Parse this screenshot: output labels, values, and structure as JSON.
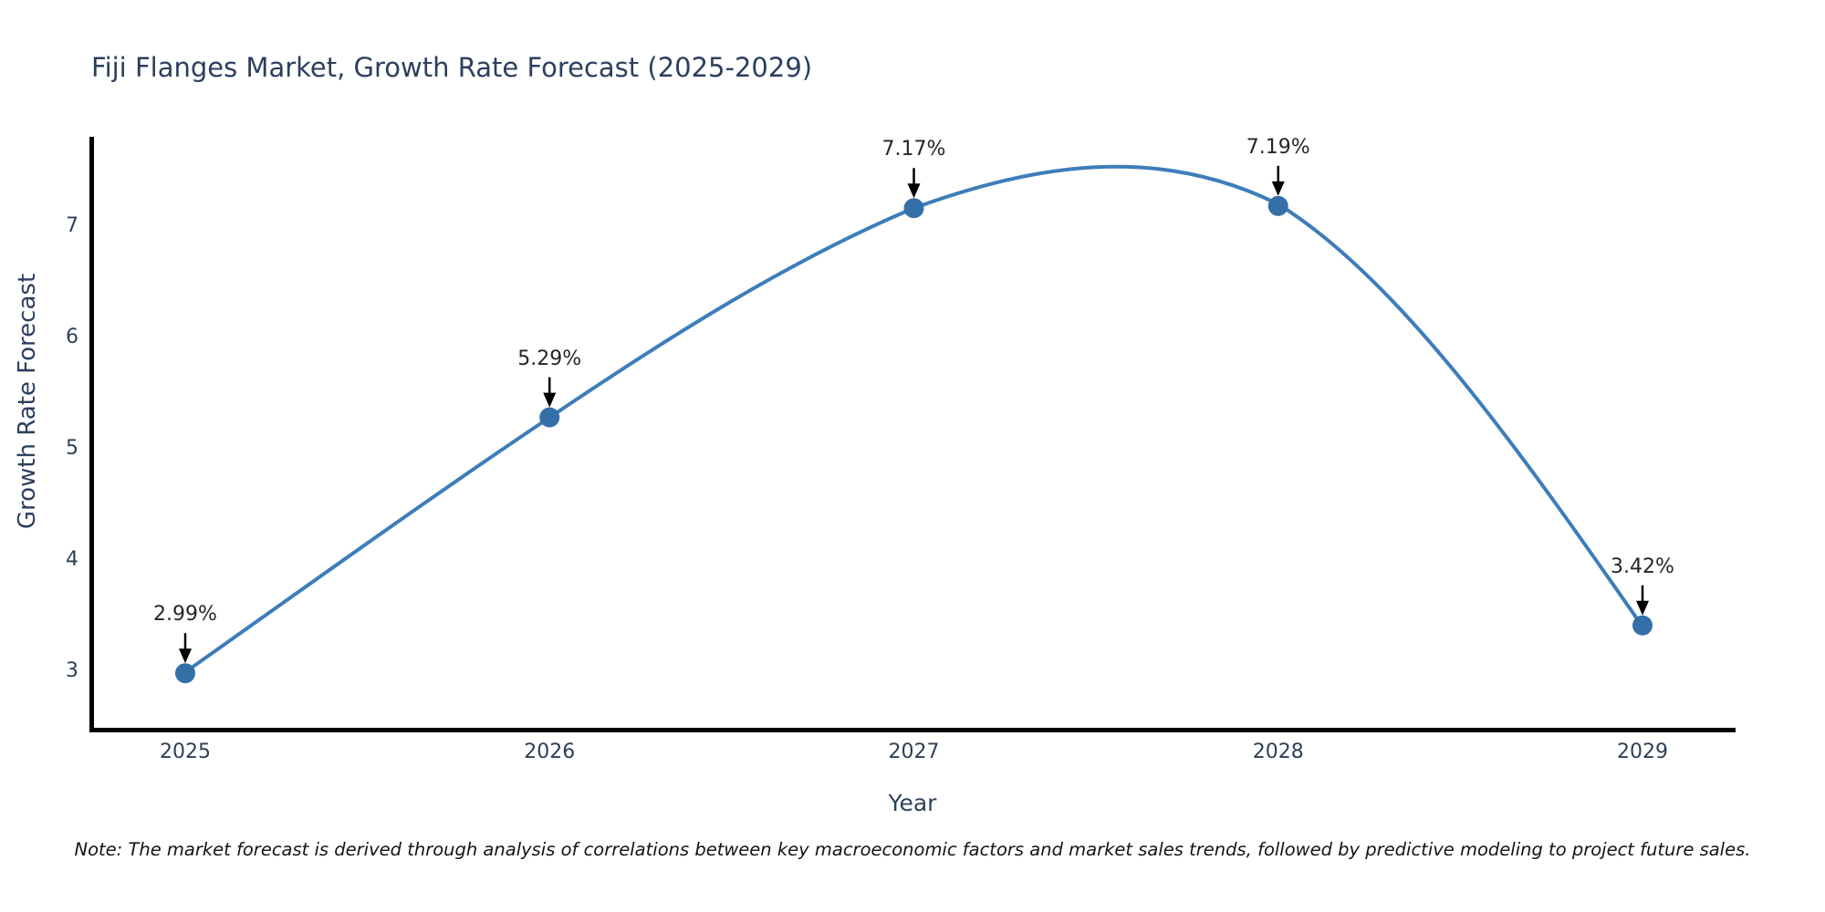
{
  "title": "Fiji Flanges Market, Growth Rate Forecast (2025-2029)",
  "note": "Note: The market forecast is derived through analysis of correlations between key macroeconomic factors and market sales trends, followed by predictive modeling to project future sales.",
  "chart_data": {
    "type": "line",
    "title": "Fiji Flanges Market, Growth Rate Forecast (2025-2029)",
    "xlabel": "Year",
    "ylabel": "Growth Rate Forecast",
    "x": [
      2025,
      2026,
      2027,
      2028,
      2029
    ],
    "values": [
      2.99,
      5.29,
      7.17,
      7.19,
      3.42
    ],
    "point_labels": [
      "2.99%",
      "5.29%",
      "7.17%",
      "7.19%",
      "3.42%"
    ],
    "yticks": [
      3,
      4,
      5,
      6,
      7
    ],
    "ylim": [
      2.48,
      7.8
    ],
    "grid": false,
    "legend": "none",
    "line_color": "#3d7dba",
    "marker_color": "#356fa8",
    "arrow_color": "#000000",
    "axis_color": "#000000",
    "text_color": "#2c3f5e"
  }
}
